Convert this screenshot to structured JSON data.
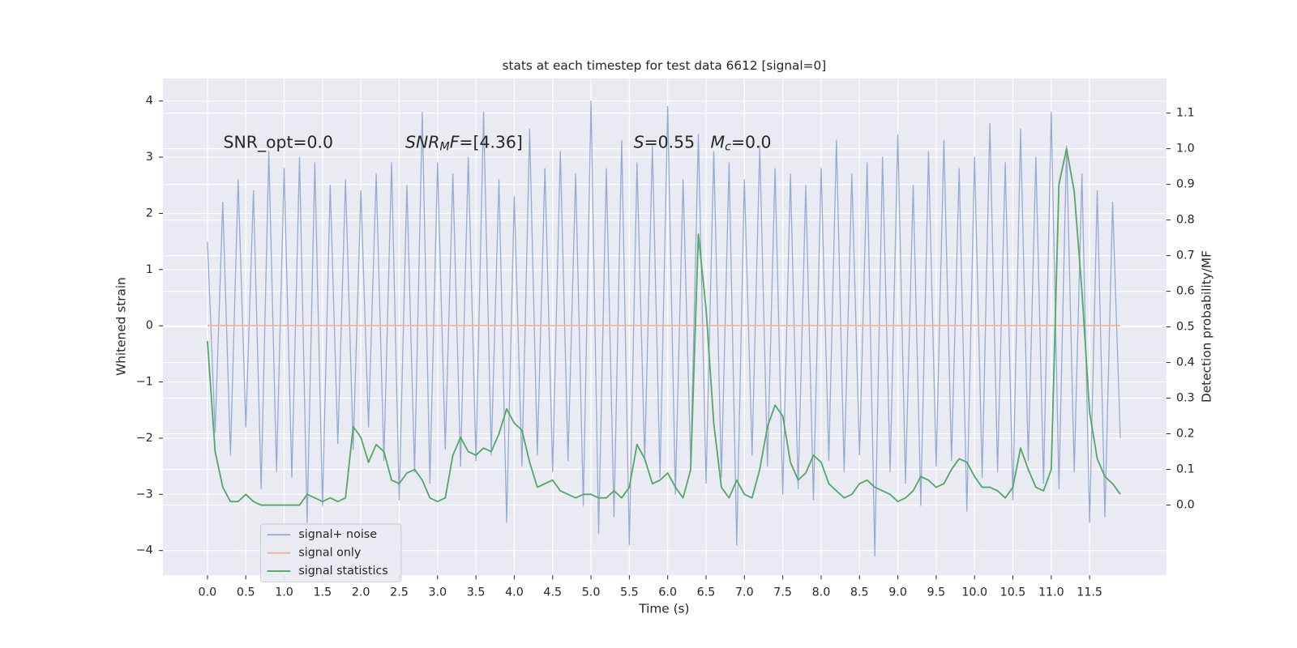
{
  "chart_data": {
    "type": "line",
    "title": "stats at each timestep for test data 6612 [signal=0]",
    "xlabel": "Time (s)",
    "ylabel": "Whitened strain",
    "y2label": "Detection probability/MF",
    "annotations": [
      {
        "parts": [
          {
            "text": "SNR_opt=0.0"
          }
        ]
      },
      {
        "parts": [
          {
            "text": "SNR",
            "italic": true
          },
          {
            "text": "M",
            "italic": true,
            "sub": true
          },
          {
            "text": "F",
            "italic": true
          },
          {
            "text": "=[4.36]"
          }
        ]
      },
      {
        "parts": [
          {
            "text": "S",
            "italic": true
          },
          {
            "text": "=0.55   "
          },
          {
            "text": "M",
            "italic": true
          },
          {
            "text": "c",
            "italic": true,
            "sub": true
          },
          {
            "text": "=0.0"
          }
        ]
      }
    ],
    "x": [
      0,
      0.1,
      0.2,
      0.3,
      0.4,
      0.5,
      0.6,
      0.7,
      0.8,
      0.9,
      1,
      1.1,
      1.2,
      1.3,
      1.4,
      1.5,
      1.6,
      1.7,
      1.8,
      1.9,
      2,
      2.1,
      2.2,
      2.3,
      2.4,
      2.5,
      2.6,
      2.7,
      2.8,
      2.9,
      3,
      3.1,
      3.2,
      3.3,
      3.4,
      3.5,
      3.6,
      3.7,
      3.8,
      3.9,
      4,
      4.1,
      4.2,
      4.3,
      4.4,
      4.5,
      4.6,
      4.7,
      4.8,
      4.9,
      5,
      5.1,
      5.2,
      5.3,
      5.4,
      5.5,
      5.6,
      5.7,
      5.8,
      5.9,
      6,
      6.1,
      6.2,
      6.3,
      6.4,
      6.5,
      6.6,
      6.7,
      6.8,
      6.9,
      7,
      7.1,
      7.2,
      7.3,
      7.4,
      7.5,
      7.6,
      7.7,
      7.8,
      7.9,
      8,
      8.1,
      8.2,
      8.3,
      8.4,
      8.5,
      8.6,
      8.7,
      8.8,
      8.9,
      9,
      9.1,
      9.2,
      9.3,
      9.4,
      9.5,
      9.6,
      9.7,
      9.8,
      9.9,
      10,
      10.1,
      10.2,
      10.3,
      10.4,
      10.5,
      10.6,
      10.7,
      10.8,
      10.9,
      11,
      11.1,
      11.2,
      11.3,
      11.4,
      11.5,
      11.6,
      11.7,
      11.8,
      11.9
    ],
    "series": [
      {
        "name": "signal+ noise",
        "color": "#9aabd3",
        "values": [
          1.5,
          -1.9,
          2.2,
          -2.3,
          2.6,
          -1.8,
          2.4,
          -2.9,
          3.1,
          -2.6,
          2.8,
          -2.7,
          3.0,
          -3.5,
          2.9,
          -3.2,
          2.5,
          -2.1,
          2.6,
          -2.2,
          2.4,
          -1.8,
          2.7,
          -2.4,
          2.9,
          -3.1,
          2.5,
          -2.6,
          3.8,
          -2.8,
          2.9,
          -2.2,
          2.7,
          -2.5,
          3.0,
          -2.4,
          3.8,
          -2.3,
          2.6,
          -3.5,
          2.3,
          -2.5,
          3.5,
          -2.3,
          2.8,
          -2.6,
          3.1,
          -2.4,
          2.7,
          -3.2,
          4.0,
          -3.7,
          2.8,
          -3.4,
          3.3,
          -3.9,
          2.9,
          -2.4,
          3.2,
          -2.7,
          3.9,
          -3.0,
          2.6,
          -2.5,
          3.4,
          -2.8,
          3.1,
          -2.7,
          2.9,
          -3.9,
          2.6,
          -2.3,
          3.2,
          -2.5,
          2.8,
          -3.0,
          2.7,
          -2.9,
          2.5,
          -3.1,
          2.8,
          -2.4,
          3.3,
          -2.6,
          2.7,
          -2.3,
          2.9,
          -4.1,
          3.0,
          -2.6,
          3.4,
          -2.8,
          2.5,
          -3.2,
          3.1,
          -2.5,
          3.3,
          -2.4,
          2.8,
          -3.3,
          3.0,
          -2.7,
          3.6,
          -2.6,
          2.9,
          -3.1,
          3.5,
          -2.4,
          3.0,
          -2.8,
          3.8,
          -2.9,
          3.2,
          -2.6,
          2.7,
          -3.5,
          2.4,
          -3.4,
          2.2,
          -2.0
        ]
      },
      {
        "name": "signal only",
        "color": "#eeb59a",
        "values": [
          0,
          0,
          0,
          0,
          0,
          0,
          0,
          0,
          0,
          0,
          0,
          0,
          0,
          0,
          0,
          0,
          0,
          0,
          0,
          0,
          0,
          0,
          0,
          0,
          0,
          0,
          0,
          0,
          0,
          0,
          0,
          0,
          0,
          0,
          0,
          0,
          0,
          0,
          0,
          0,
          0,
          0,
          0,
          0,
          0,
          0,
          0,
          0,
          0,
          0,
          0,
          0,
          0,
          0,
          0,
          0,
          0,
          0,
          0,
          0,
          0,
          0,
          0,
          0,
          0,
          0,
          0,
          0,
          0,
          0,
          0,
          0,
          0,
          0,
          0,
          0,
          0,
          0,
          0,
          0,
          0,
          0,
          0,
          0,
          0,
          0,
          0,
          0,
          0,
          0,
          0,
          0,
          0,
          0,
          0,
          0,
          0,
          0,
          0,
          0,
          0,
          0,
          0,
          0,
          0,
          0,
          0,
          0,
          0,
          0,
          0,
          0,
          0,
          0,
          0,
          0,
          0,
          0,
          0,
          0
        ]
      },
      {
        "name": "signal statistics",
        "color": "#55a868",
        "axis": "y2",
        "values": [
          0.46,
          0.15,
          0.05,
          0.01,
          0.01,
          0.03,
          0.01,
          0,
          0,
          0,
          0,
          0,
          0,
          0.03,
          0.02,
          0.01,
          0.02,
          0.01,
          0.02,
          0.22,
          0.19,
          0.12,
          0.17,
          0.15,
          0.07,
          0.06,
          0.09,
          0.1,
          0.07,
          0.02,
          0.01,
          0.02,
          0.14,
          0.19,
          0.15,
          0.14,
          0.16,
          0.15,
          0.2,
          0.27,
          0.23,
          0.21,
          0.12,
          0.05,
          0.06,
          0.07,
          0.04,
          0.03,
          0.02,
          0.03,
          0.03,
          0.02,
          0.02,
          0.04,
          0.02,
          0.05,
          0.17,
          0.13,
          0.06,
          0.07,
          0.09,
          0.05,
          0.02,
          0.1,
          0.76,
          0.55,
          0.23,
          0.05,
          0.02,
          0.07,
          0.03,
          0.02,
          0.1,
          0.22,
          0.28,
          0.25,
          0.12,
          0.07,
          0.09,
          0.14,
          0.12,
          0.06,
          0.04,
          0.02,
          0.03,
          0.06,
          0.07,
          0.05,
          0.04,
          0.03,
          0.01,
          0.02,
          0.04,
          0.08,
          0.07,
          0.05,
          0.06,
          0.1,
          0.13,
          0.12,
          0.08,
          0.05,
          0.05,
          0.04,
          0.02,
          0.05,
          0.16,
          0.1,
          0.05,
          0.04,
          0.1,
          0.9,
          1.0,
          0.88,
          0.6,
          0.26,
          0.13,
          0.08,
          0.06,
          0.03
        ]
      }
    ],
    "xlim": [
      -0.58,
      12.5
    ],
    "ylim": [
      -4.44,
      4.4
    ],
    "y2lim": [
      -0.197,
      1.197
    ],
    "xticks": [
      {
        "value": 0,
        "label": "0.0"
      },
      0.5,
      {
        "value": 1,
        "label": "1.0"
      },
      1.5,
      {
        "value": 2,
        "label": "2.0"
      },
      2.5,
      {
        "value": 3,
        "label": "3.0"
      },
      3.5,
      {
        "value": 4,
        "label": "4.0"
      },
      4.5,
      {
        "value": 5,
        "label": "5.0"
      },
      5.5,
      {
        "value": 6,
        "label": "6.0"
      },
      6.5,
      {
        "value": 7,
        "label": "7.0"
      },
      7.5,
      {
        "value": 8,
        "label": "8.0"
      },
      8.5,
      {
        "value": 9,
        "label": "9.0"
      },
      9.5,
      {
        "value": 10,
        "label": "10.0"
      },
      10.5,
      {
        "value": 11,
        "label": "11.0"
      },
      11.5
    ],
    "yticks": [
      {
        "value": -4,
        "label": "−4"
      },
      {
        "value": -3,
        "label": "−3"
      },
      {
        "value": -2,
        "label": "−2"
      },
      {
        "value": -1,
        "label": "−1"
      },
      0,
      1,
      2,
      3,
      4
    ],
    "y2ticks": [
      {
        "value": 0,
        "label": "0.0"
      },
      0.1,
      0.2,
      0.3,
      0.4,
      0.5,
      0.6,
      0.7,
      0.8,
      0.9,
      {
        "value": 1,
        "label": "1.0"
      },
      1.1
    ],
    "grid": true,
    "legend": "lower left"
  }
}
